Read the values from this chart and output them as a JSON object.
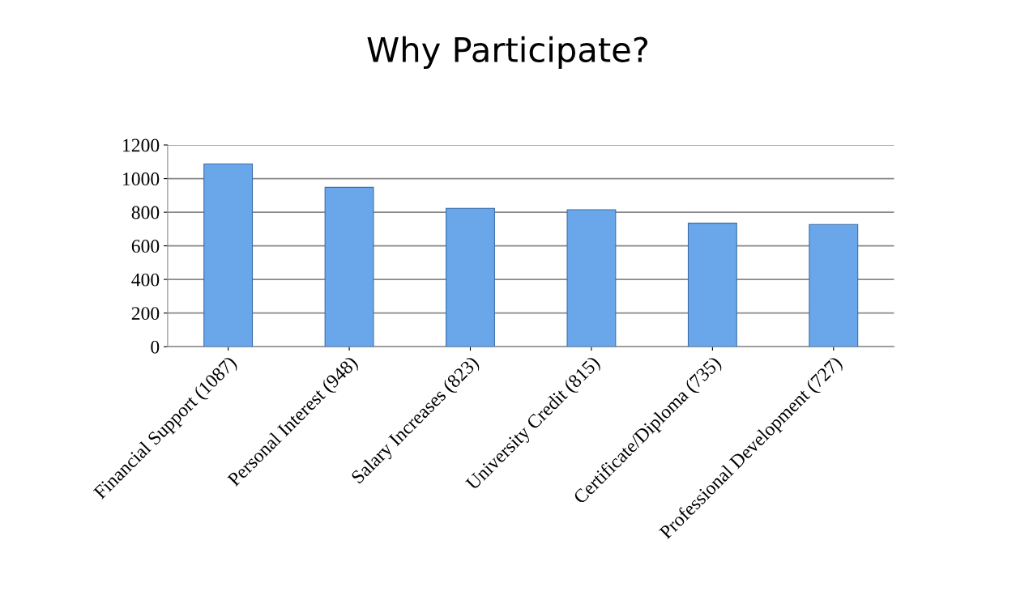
{
  "chart_data": {
    "type": "bar",
    "title": "Why Participate?",
    "categories": [
      "Financial Support (1087)",
      "Personal Interest (948)",
      "Salary Increases (823)",
      "University Credit (815)",
      "Certificate/Diploma (735)",
      "Professional Development (727)"
    ],
    "values": [
      1087,
      948,
      823,
      815,
      735,
      727
    ],
    "color": "#6aa6ea",
    "ylim": [
      0,
      1200
    ],
    "yticks": [
      0,
      200,
      400,
      600,
      800,
      1000,
      1200
    ],
    "grid": "y"
  }
}
